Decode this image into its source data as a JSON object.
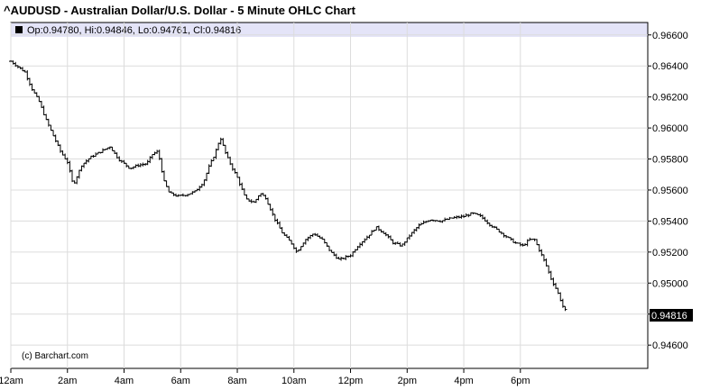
{
  "header": {
    "title": "^AUDUSD - Australian Dollar/U.S. Dollar - 5 Minute OHLC Chart"
  },
  "info_bar": {
    "text": "Op:0.94780, Hi:0.94846, Lo:0.94761, Cl:0.94816",
    "background": "#e4e4f8"
  },
  "credit": "(c) Barchart.com",
  "last_price": {
    "label": "0.94816",
    "background": "#000000"
  },
  "chart_data": {
    "type": "ohlc",
    "interval": "5 Minute",
    "x_axis": {
      "ticks": [
        "12am",
        "2am",
        "4am",
        "6am",
        "8am",
        "10am",
        "12pm",
        "2pm",
        "4pm",
        "6pm"
      ],
      "tick_hours": [
        0,
        2,
        4,
        6,
        8,
        10,
        12,
        14,
        16,
        18
      ],
      "range_hours": [
        0,
        22.5
      ]
    },
    "y_axis": {
      "position": "right",
      "ticks": [
        "0.96600",
        "0.96400",
        "0.96200",
        "0.96000",
        "0.95800",
        "0.95600",
        "0.95400",
        "0.95200",
        "0.95000",
        "0.94800",
        "0.94600"
      ],
      "range": [
        0.9445,
        0.9668
      ]
    },
    "grid": true,
    "path_close": [
      [
        0.0,
        0.9643
      ],
      [
        0.5,
        0.9636
      ],
      [
        0.75,
        0.9625
      ],
      [
        1.0,
        0.9617
      ],
      [
        1.25,
        0.9605
      ],
      [
        1.5,
        0.9595
      ],
      [
        1.75,
        0.9585
      ],
      [
        2.0,
        0.9578
      ],
      [
        2.2,
        0.9563
      ],
      [
        2.5,
        0.9576
      ],
      [
        2.8,
        0.9581
      ],
      [
        3.2,
        0.9585
      ],
      [
        3.5,
        0.9588
      ],
      [
        3.8,
        0.958
      ],
      [
        4.2,
        0.9574
      ],
      [
        4.5,
        0.9576
      ],
      [
        4.8,
        0.9577
      ],
      [
        5.0,
        0.9583
      ],
      [
        5.2,
        0.9585
      ],
      [
        5.4,
        0.9566
      ],
      [
        5.6,
        0.9558
      ],
      [
        5.9,
        0.9556
      ],
      [
        6.2,
        0.9557
      ],
      [
        6.5,
        0.9559
      ],
      [
        6.8,
        0.9565
      ],
      [
        7.0,
        0.9575
      ],
      [
        7.2,
        0.9583
      ],
      [
        7.4,
        0.9594
      ],
      [
        7.6,
        0.9583
      ],
      [
        7.8,
        0.9575
      ],
      [
        8.0,
        0.9568
      ],
      [
        8.3,
        0.9554
      ],
      [
        8.6,
        0.9552
      ],
      [
        8.8,
        0.9558
      ],
      [
        9.0,
        0.9555
      ],
      [
        9.3,
        0.9542
      ],
      [
        9.6,
        0.9532
      ],
      [
        9.9,
        0.9526
      ],
      [
        10.1,
        0.952
      ],
      [
        10.4,
        0.9528
      ],
      [
        10.7,
        0.9532
      ],
      [
        11.0,
        0.9528
      ],
      [
        11.3,
        0.952
      ],
      [
        11.6,
        0.9515
      ],
      [
        12.0,
        0.9518
      ],
      [
        12.3,
        0.9525
      ],
      [
        12.6,
        0.953
      ],
      [
        12.9,
        0.9536
      ],
      [
        13.2,
        0.9532
      ],
      [
        13.5,
        0.9526
      ],
      [
        13.8,
        0.9524
      ],
      [
        14.1,
        0.9531
      ],
      [
        14.4,
        0.9537
      ],
      [
        14.8,
        0.9541
      ],
      [
        15.2,
        0.954
      ],
      [
        15.6,
        0.9542
      ],
      [
        16.0,
        0.9543
      ],
      [
        16.3,
        0.9545
      ],
      [
        16.6,
        0.9543
      ],
      [
        16.9,
        0.9538
      ],
      [
        17.2,
        0.9534
      ],
      [
        17.5,
        0.953
      ],
      [
        17.8,
        0.9526
      ],
      [
        18.1,
        0.9524
      ],
      [
        18.3,
        0.9528
      ],
      [
        18.5,
        0.9528
      ],
      [
        18.7,
        0.952
      ],
      [
        18.9,
        0.9512
      ],
      [
        19.1,
        0.9502
      ],
      [
        19.3,
        0.9495
      ],
      [
        19.5,
        0.9485
      ],
      [
        19.6,
        0.9482
      ]
    ]
  }
}
